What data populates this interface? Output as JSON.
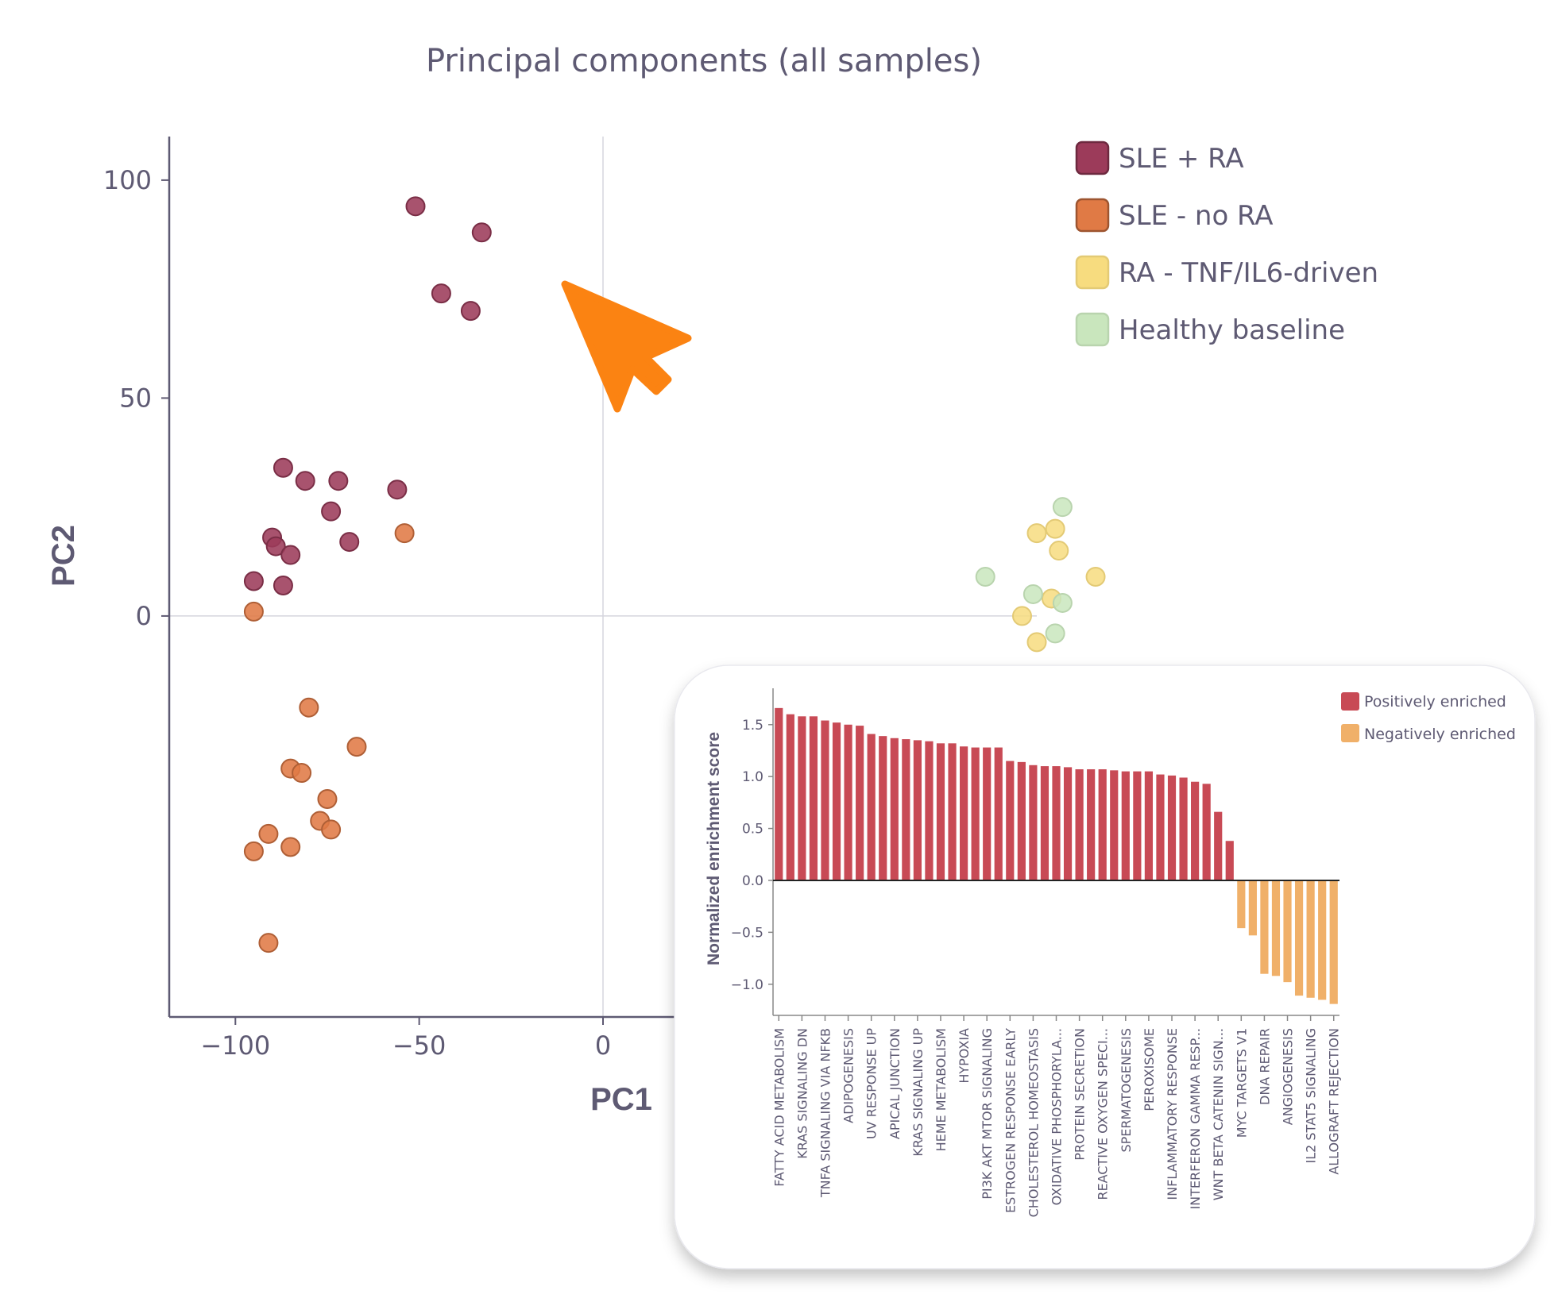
{
  "chart_data": [
    {
      "type": "scatter",
      "title": "Principal components (all samples)",
      "xlabel": "PC1",
      "ylabel": "PC2",
      "xlim": [
        -118,
        118
      ],
      "ylim": [
        -92,
        110
      ],
      "x_ticks": [
        -100,
        -50,
        0
      ],
      "x_tick_labels": [
        "−100",
        "−50",
        "0"
      ],
      "y_ticks": [
        100,
        50,
        0
      ],
      "y_tick_labels": [
        "100",
        "50",
        "0"
      ],
      "legend_position": "top-right",
      "series": [
        {
          "name": "SLE + RA",
          "color": "#9c3b5a",
          "points": [
            [
              -51,
              94
            ],
            [
              -33,
              88
            ],
            [
              -44,
              74
            ],
            [
              -36,
              70
            ],
            [
              -87,
              34
            ],
            [
              -81,
              31
            ],
            [
              -72,
              31
            ],
            [
              -56,
              29
            ],
            [
              -74,
              24
            ],
            [
              -90,
              18
            ],
            [
              -89,
              16
            ],
            [
              -85,
              14
            ],
            [
              -69,
              17
            ],
            [
              -95,
              8
            ],
            [
              -87,
              7
            ]
          ]
        },
        {
          "name": "SLE - no RA",
          "color": "#e07a45",
          "points": [
            [
              -54,
              19
            ],
            [
              -95,
              1
            ],
            [
              -80,
              -21
            ],
            [
              -67,
              -30
            ],
            [
              -85,
              -35
            ],
            [
              -82,
              -36
            ],
            [
              -75,
              -42
            ],
            [
              -77,
              -47
            ],
            [
              -74,
              -49
            ],
            [
              -91,
              -50
            ],
            [
              -85,
              -53
            ],
            [
              -95,
              -54
            ],
            [
              -91,
              -75
            ]
          ]
        },
        {
          "name": "RA - TNF/IL6-driven",
          "color": "#f7dc7f",
          "points": [
            [
              118,
              19
            ],
            [
              123,
              20
            ],
            [
              124,
              15
            ],
            [
              134,
              9
            ],
            [
              122,
              4
            ],
            [
              114,
              0
            ],
            [
              118,
              -6
            ]
          ]
        },
        {
          "name": "Healthy baseline",
          "color": "#c9e6bd",
          "points": [
            [
              125,
              25
            ],
            [
              104,
              9
            ],
            [
              117,
              5
            ],
            [
              125,
              3
            ],
            [
              123,
              -4
            ]
          ]
        }
      ]
    },
    {
      "type": "bar",
      "ylabel": "Normalized enrichment score",
      "ylim": [
        -1.3,
        1.85
      ],
      "y_ticks": [
        1.5,
        1.0,
        0.5,
        0.0,
        -0.5,
        -1.0
      ],
      "y_tick_labels": [
        "1.5",
        "1.0",
        "0.5",
        "0.0",
        "−0.5",
        "−1.0"
      ],
      "legend_position": "top-right",
      "series": [
        {
          "name": "Positively enriched",
          "color": "#c84a55"
        },
        {
          "name": "Negatively enriched",
          "color": "#f0b069"
        }
      ],
      "values": [
        1.66,
        1.6,
        1.58,
        1.58,
        1.54,
        1.52,
        1.5,
        1.49,
        1.41,
        1.39,
        1.37,
        1.36,
        1.35,
        1.34,
        1.32,
        1.32,
        1.29,
        1.28,
        1.28,
        1.28,
        1.15,
        1.14,
        1.11,
        1.1,
        1.1,
        1.09,
        1.07,
        1.07,
        1.07,
        1.06,
        1.05,
        1.05,
        1.05,
        1.02,
        1.01,
        0.99,
        0.95,
        0.93,
        0.66,
        0.38,
        -0.46,
        -0.53,
        -0.9,
        -0.92,
        -0.98,
        -1.11,
        -1.13,
        -1.15,
        -1.19
      ],
      "tick_labels": [
        "FATTY ACID METABOLISM",
        "KRAS SIGNALING DN",
        "TNFA SIGNALING VIA NFKB",
        "ADIPOGENESIS",
        "UV RESPONSE UP",
        "APICAL JUNCTION",
        "KRAS SIGNALING UP",
        "HEME METABOLISM",
        "HYPOXIA",
        "PI3K AKT MTOR SIGNALING",
        "ESTROGEN RESPONSE EARLY",
        "CHOLESTEROL HOMEOSTASIS",
        "OXIDATIVE PHOSPHORYLA...",
        "PROTEIN SECRETION",
        "REACTIVE OXYGEN SPECI...",
        "SPERMATOGENESIS",
        "PEROXISOME",
        "INFLAMMATORY RESPONSE",
        "INTERFERON GAMMA RESP...",
        "WNT BETA CATENIN SIGN...",
        "MYC TARGETS V1",
        "DNA REPAIR",
        "ANGIOGENESIS",
        "IL2 STAT5 SIGNALING",
        "ALLOGRAFT REJECTION"
      ],
      "tick_label_positions": [
        0,
        2,
        4,
        6,
        8,
        10,
        12,
        14,
        16,
        18,
        20,
        22,
        24,
        26,
        28,
        30,
        32,
        34,
        36,
        38,
        40,
        42,
        44,
        46,
        48
      ]
    }
  ],
  "cursor": {
    "icon": "cursor-arrow-icon",
    "color": "#fb8312"
  }
}
